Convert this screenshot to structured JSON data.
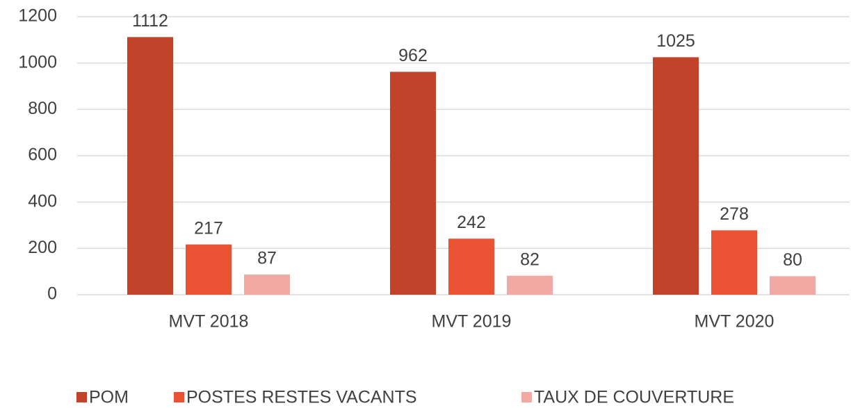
{
  "chart_data": {
    "type": "bar",
    "categories": [
      "MVT 2018",
      "MVT 2019",
      "MVT 2020"
    ],
    "series": [
      {
        "name": "POM",
        "color": "#c0432a",
        "values": [
          1112,
          962,
          1025
        ]
      },
      {
        "name": "POSTES RESTES VACANTS",
        "color": "#e95334",
        "values": [
          217,
          242,
          278
        ]
      },
      {
        "name": "TAUX DE COUVERTURE",
        "color": "#f2a9a3",
        "values": [
          87,
          82,
          80
        ]
      }
    ],
    "ylim": [
      0,
      1200
    ],
    "yticks": [
      0,
      200,
      400,
      600,
      800,
      1000,
      1200
    ],
    "grid": true,
    "legend": "bottom"
  }
}
